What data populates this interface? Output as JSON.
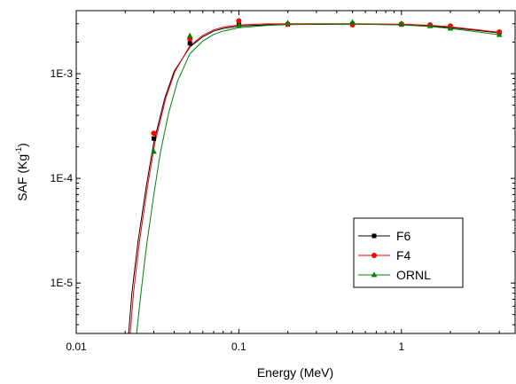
{
  "chart_data": {
    "type": "line",
    "xlabel": "Energy (MeV)",
    "ylabel_main": "SAF (Kg",
    "ylabel_sup": "-1",
    "ylabel_tail": ")",
    "x_scale": "log",
    "y_scale": "log",
    "xlim": [
      0.01,
      5
    ],
    "ylim": [
      3.3e-06,
      0.004
    ],
    "x_ticks": [
      {
        "value": 0.01,
        "label": "0.01"
      },
      {
        "value": 0.1,
        "label": "0.1"
      },
      {
        "value": 1,
        "label": "1"
      }
    ],
    "y_ticks": [
      {
        "value": 1e-05,
        "label": "1E-5"
      },
      {
        "value": 0.0001,
        "label": "1E-4"
      },
      {
        "value": 0.001,
        "label": "1E-3"
      }
    ],
    "grid": false,
    "legend_position": "lower-right",
    "series": [
      {
        "name": "F6",
        "color": "#000000",
        "marker": "square",
        "points": [
          {
            "x": 0.03,
            "y": 0.00024
          },
          {
            "x": 0.05,
            "y": 0.00195
          },
          {
            "x": 0.1,
            "y": 0.00305
          },
          {
            "x": 0.2,
            "y": 0.00295
          },
          {
            "x": 0.5,
            "y": 0.00298
          },
          {
            "x": 1,
            "y": 0.00295
          },
          {
            "x": 1.5,
            "y": 0.00288
          },
          {
            "x": 2,
            "y": 0.00278
          },
          {
            "x": 4,
            "y": 0.00248
          }
        ],
        "curve": [
          {
            "x": 0.021,
            "y": 3.3e-06
          },
          {
            "x": 0.022,
            "y": 8e-06
          },
          {
            "x": 0.024,
            "y": 2.5e-05
          },
          {
            "x": 0.027,
            "y": 8.5e-05
          },
          {
            "x": 0.03,
            "y": 0.00022
          },
          {
            "x": 0.035,
            "y": 0.00058
          },
          {
            "x": 0.04,
            "y": 0.00105
          },
          {
            "x": 0.05,
            "y": 0.0018
          },
          {
            "x": 0.06,
            "y": 0.00225
          },
          {
            "x": 0.07,
            "y": 0.00255
          },
          {
            "x": 0.08,
            "y": 0.0027
          },
          {
            "x": 0.1,
            "y": 0.00285
          },
          {
            "x": 0.15,
            "y": 0.00293
          },
          {
            "x": 0.2,
            "y": 0.00295
          },
          {
            "x": 0.3,
            "y": 0.00296
          },
          {
            "x": 0.5,
            "y": 0.00297
          },
          {
            "x": 1,
            "y": 0.00294
          },
          {
            "x": 1.5,
            "y": 0.00286
          },
          {
            "x": 2,
            "y": 0.00276
          },
          {
            "x": 3,
            "y": 0.00258
          },
          {
            "x": 4,
            "y": 0.00245
          }
        ]
      },
      {
        "name": "F4",
        "color": "#ff0000",
        "marker": "circle",
        "points": [
          {
            "x": 0.03,
            "y": 0.00027
          },
          {
            "x": 0.05,
            "y": 0.00215
          },
          {
            "x": 0.1,
            "y": 0.0032
          },
          {
            "x": 0.2,
            "y": 0.00298
          },
          {
            "x": 0.5,
            "y": 0.00293
          },
          {
            "x": 1,
            "y": 0.00298
          },
          {
            "x": 1.5,
            "y": 0.00292
          },
          {
            "x": 2,
            "y": 0.00285
          },
          {
            "x": 4,
            "y": 0.0025
          }
        ],
        "curve": [
          {
            "x": 0.0215,
            "y": 3.3e-06
          },
          {
            "x": 0.0225,
            "y": 8e-06
          },
          {
            "x": 0.0245,
            "y": 2.5e-05
          },
          {
            "x": 0.0275,
            "y": 8.5e-05
          },
          {
            "x": 0.0305,
            "y": 0.00022
          },
          {
            "x": 0.0355,
            "y": 0.00058
          },
          {
            "x": 0.0405,
            "y": 0.00105
          },
          {
            "x": 0.05,
            "y": 0.00185
          },
          {
            "x": 0.06,
            "y": 0.00232
          },
          {
            "x": 0.07,
            "y": 0.00262
          },
          {
            "x": 0.08,
            "y": 0.00278
          },
          {
            "x": 0.1,
            "y": 0.00292
          },
          {
            "x": 0.15,
            "y": 0.00299
          },
          {
            "x": 0.2,
            "y": 0.003
          },
          {
            "x": 0.3,
            "y": 0.003
          },
          {
            "x": 0.5,
            "y": 0.003
          },
          {
            "x": 1,
            "y": 0.00297
          },
          {
            "x": 1.5,
            "y": 0.0029
          },
          {
            "x": 2,
            "y": 0.0028
          },
          {
            "x": 3,
            "y": 0.00262
          },
          {
            "x": 4,
            "y": 0.00248
          }
        ]
      },
      {
        "name": "ORNL",
        "color": "#008000",
        "marker": "triangle",
        "points": [
          {
            "x": 0.03,
            "y": 0.00018
          },
          {
            "x": 0.05,
            "y": 0.0023
          },
          {
            "x": 0.1,
            "y": 0.0029
          },
          {
            "x": 0.2,
            "y": 0.00305
          },
          {
            "x": 0.5,
            "y": 0.0031
          },
          {
            "x": 1,
            "y": 0.003
          },
          {
            "x": 1.5,
            "y": 0.00285
          },
          {
            "x": 2,
            "y": 0.0027
          },
          {
            "x": 4,
            "y": 0.00235
          }
        ],
        "curve": [
          {
            "x": 0.0235,
            "y": 3.3e-06
          },
          {
            "x": 0.025,
            "y": 8e-06
          },
          {
            "x": 0.027,
            "y": 2.2e-05
          },
          {
            "x": 0.03,
            "y": 7e-05
          },
          {
            "x": 0.033,
            "y": 0.00018
          },
          {
            "x": 0.037,
            "y": 0.00042
          },
          {
            "x": 0.042,
            "y": 0.00085
          },
          {
            "x": 0.05,
            "y": 0.00155
          },
          {
            "x": 0.06,
            "y": 0.00205
          },
          {
            "x": 0.07,
            "y": 0.00237
          },
          {
            "x": 0.08,
            "y": 0.00255
          },
          {
            "x": 0.1,
            "y": 0.00275
          },
          {
            "x": 0.15,
            "y": 0.00289
          },
          {
            "x": 0.2,
            "y": 0.00294
          },
          {
            "x": 0.3,
            "y": 0.00297
          },
          {
            "x": 0.5,
            "y": 0.00298
          },
          {
            "x": 1,
            "y": 0.00292
          },
          {
            "x": 1.5,
            "y": 0.00282
          },
          {
            "x": 2,
            "y": 0.0027
          },
          {
            "x": 3,
            "y": 0.0025
          },
          {
            "x": 4,
            "y": 0.00235
          }
        ]
      }
    ]
  }
}
